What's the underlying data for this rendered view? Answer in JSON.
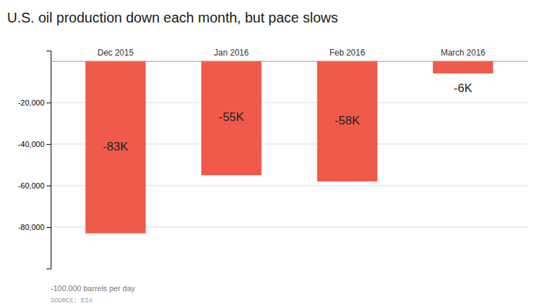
{
  "chart_data": {
    "type": "bar",
    "title": "U.S. oil production down each month, but pace slows",
    "categories": [
      "Dec 2015",
      "Jan 2016",
      "Feb 2016",
      "March 2016"
    ],
    "values": [
      -83000,
      -55000,
      -58000,
      -6000
    ],
    "value_labels": [
      "-83K",
      "-55K",
      "-58K",
      "-6K"
    ],
    "data_labels": true,
    "color": "#f05a4a",
    "ylabel": "-100,000 barrels per day",
    "annotations": [
      "SOURCE: EIA"
    ],
    "ylim": [
      -100000,
      5000
    ],
    "yticks": [
      {
        "value": -20000,
        "label": "-20,000"
      },
      {
        "value": -40000,
        "label": "-40,000"
      },
      {
        "value": -60000,
        "label": "-60,000"
      },
      {
        "value": -80000,
        "label": "-80,000"
      }
    ],
    "grid": true
  }
}
